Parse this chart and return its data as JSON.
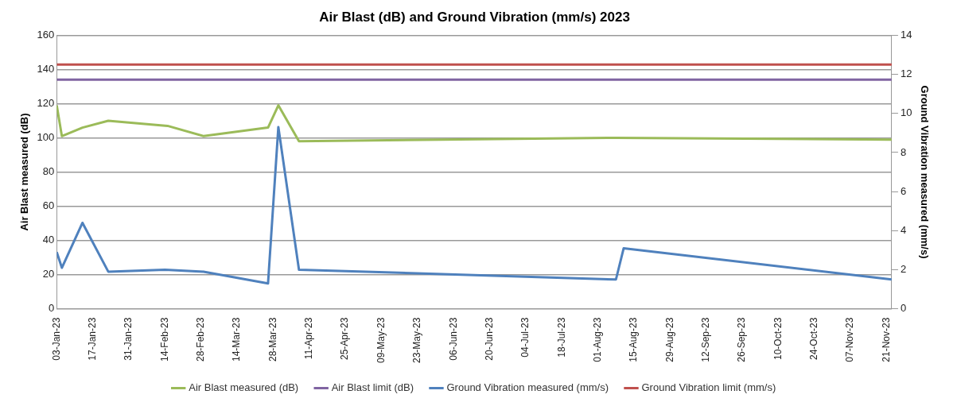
{
  "chart_data": {
    "type": "line",
    "title": "Air Blast (dB) and Ground Vibration (mm/s) 2023",
    "ylabel": "Air Blast measured (dB)",
    "y2label": "Ground Vibration measured (mm/s)",
    "xlim": [
      "2023-01-03",
      "2023-11-23"
    ],
    "xticks": [
      {
        "value": "2023-01-03",
        "label": "03-Jan-23"
      },
      {
        "value": "2023-01-17",
        "label": "17-Jan-23"
      },
      {
        "value": "2023-01-31",
        "label": "31-Jan-23"
      },
      {
        "value": "2023-02-14",
        "label": "14-Feb-23"
      },
      {
        "value": "2023-02-28",
        "label": "28-Feb-23"
      },
      {
        "value": "2023-03-14",
        "label": "14-Mar-23"
      },
      {
        "value": "2023-03-28",
        "label": "28-Mar-23"
      },
      {
        "value": "2023-04-11",
        "label": "11-Apr-23"
      },
      {
        "value": "2023-04-25",
        "label": "25-Apr-23"
      },
      {
        "value": "2023-05-09",
        "label": "09-May-23"
      },
      {
        "value": "2023-05-23",
        "label": "23-May-23"
      },
      {
        "value": "2023-06-06",
        "label": "06-Jun-23"
      },
      {
        "value": "2023-06-20",
        "label": "20-Jun-23"
      },
      {
        "value": "2023-07-04",
        "label": "04-Jul-23"
      },
      {
        "value": "2023-07-18",
        "label": "18-Jul-23"
      },
      {
        "value": "2023-08-01",
        "label": "01-Aug-23"
      },
      {
        "value": "2023-08-15",
        "label": "15-Aug-23"
      },
      {
        "value": "2023-08-29",
        "label": "29-Aug-23"
      },
      {
        "value": "2023-09-12",
        "label": "12-Sep-23"
      },
      {
        "value": "2023-09-26",
        "label": "26-Sep-23"
      },
      {
        "value": "2023-10-10",
        "label": "10-Oct-23"
      },
      {
        "value": "2023-10-24",
        "label": "24-Oct-23"
      },
      {
        "value": "2023-11-07",
        "label": "07-Nov-23"
      },
      {
        "value": "2023-11-21",
        "label": "21-Nov-23"
      }
    ],
    "ylim": [
      0,
      160
    ],
    "yticks": [
      0,
      20,
      40,
      60,
      80,
      100,
      120,
      140,
      160
    ],
    "y2lim": [
      0,
      14
    ],
    "y2ticks": [
      0,
      2,
      4,
      6,
      8,
      10,
      12,
      14
    ],
    "grid": "y",
    "legend": "bottom",
    "series": [
      {
        "name": "Air Blast measured (dB)",
        "color": "#9bbb59",
        "x": [
          "2023-01-03",
          "2023-01-05",
          "2023-01-13",
          "2023-01-23",
          "2023-02-15",
          "2023-03-01",
          "2023-03-26",
          "2023-03-30",
          "2023-04-07",
          "2023-08-08",
          "2023-11-23"
        ],
        "values": [
          119,
          101,
          106,
          110,
          107,
          101,
          106,
          119,
          98,
          100,
          99
        ]
      },
      {
        "name": "Air Blast limit (dB)",
        "color": "#8064a2",
        "x": [
          "2023-01-03",
          "2023-11-23"
        ],
        "values": [
          134,
          134
        ]
      },
      {
        "name": "Ground Vibration measured (mm/s)",
        "color": "#4f81bd",
        "axis": "y2",
        "x": [
          "2023-01-03",
          "2023-01-05",
          "2023-01-13",
          "2023-01-23",
          "2023-02-14",
          "2023-03-01",
          "2023-03-26",
          "2023-03-30",
          "2023-04-07",
          "2023-08-08",
          "2023-08-11",
          "2023-11-23"
        ],
        "values": [
          2.9,
          2.1,
          4.4,
          1.9,
          2.0,
          1.9,
          1.3,
          9.3,
          2.0,
          1.5,
          3.1,
          1.5
        ]
      },
      {
        "name": "Ground Vibration limit (mm/s)",
        "color": "#c0504d",
        "axis": "y2",
        "x": [
          "2023-01-03",
          "2023-11-23"
        ],
        "values": [
          12.5,
          12.5
        ]
      }
    ]
  }
}
